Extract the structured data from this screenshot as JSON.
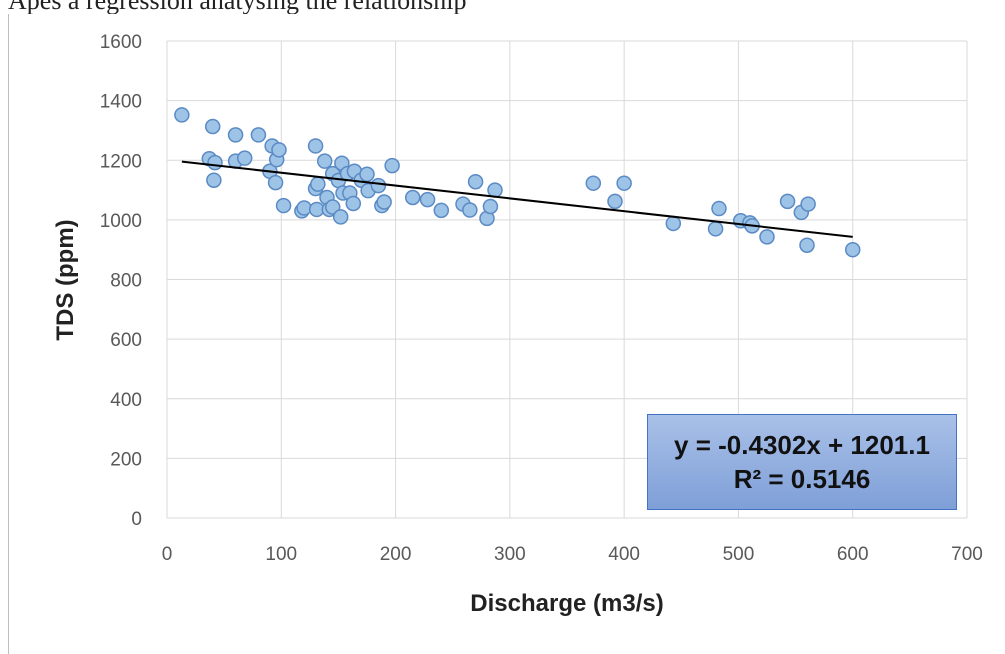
{
  "caption_fragment": "Apes a regression anatysing the relationsnip",
  "colors": {
    "point_fill": "#9dc3e6",
    "point_stroke": "#5b8ac4",
    "trendline": "#000000",
    "grid": "#d9d9d9",
    "box_fill": "#8faadc"
  },
  "chart_data": {
    "type": "scatter",
    "title": "",
    "xlabel": "Discharge (m3/s)",
    "ylabel": "TDS (ppm)",
    "xlim": [
      0,
      700
    ],
    "ylim": [
      0,
      1600
    ],
    "xticks": [
      0,
      100,
      200,
      300,
      400,
      500,
      600,
      700
    ],
    "yticks": [
      0,
      200,
      400,
      600,
      800,
      1000,
      1200,
      1400,
      1600
    ],
    "grid": true,
    "points": [
      [
        13,
        1352
      ],
      [
        37,
        1205
      ],
      [
        40,
        1313
      ],
      [
        41,
        1133
      ],
      [
        42,
        1192
      ],
      [
        60,
        1285
      ],
      [
        60,
        1197
      ],
      [
        68,
        1207
      ],
      [
        80,
        1285
      ],
      [
        90,
        1163
      ],
      [
        92,
        1248
      ],
      [
        95,
        1125
      ],
      [
        96,
        1202
      ],
      [
        98,
        1235
      ],
      [
        102,
        1048
      ],
      [
        118,
        1030
      ],
      [
        120,
        1040
      ],
      [
        130,
        1248
      ],
      [
        130,
        1105
      ],
      [
        131,
        1035
      ],
      [
        132,
        1120
      ],
      [
        138,
        1197
      ],
      [
        140,
        1075
      ],
      [
        142,
        1035
      ],
      [
        145,
        1155
      ],
      [
        145,
        1043
      ],
      [
        150,
        1132
      ],
      [
        152,
        1010
      ],
      [
        153,
        1190
      ],
      [
        154,
        1090
      ],
      [
        158,
        1155
      ],
      [
        160,
        1090
      ],
      [
        163,
        1055
      ],
      [
        164,
        1163
      ],
      [
        170,
        1133
      ],
      [
        175,
        1153
      ],
      [
        176,
        1098
      ],
      [
        185,
        1115
      ],
      [
        188,
        1048
      ],
      [
        190,
        1060
      ],
      [
        197,
        1182
      ],
      [
        215,
        1075
      ],
      [
        228,
        1068
      ],
      [
        240,
        1032
      ],
      [
        259,
        1053
      ],
      [
        265,
        1033
      ],
      [
        270,
        1128
      ],
      [
        280,
        1005
      ],
      [
        283,
        1045
      ],
      [
        287,
        1100
      ],
      [
        373,
        1123
      ],
      [
        392,
        1062
      ],
      [
        400,
        1123
      ],
      [
        443,
        988
      ],
      [
        480,
        970
      ],
      [
        483,
        1038
      ],
      [
        502,
        997
      ],
      [
        510,
        990
      ],
      [
        512,
        980
      ],
      [
        525,
        943
      ],
      [
        543,
        1062
      ],
      [
        555,
        1025
      ],
      [
        560,
        915
      ],
      [
        561,
        1053
      ],
      [
        600,
        900
      ]
    ],
    "trendline": {
      "slope": -0.4302,
      "intercept": 1201.1,
      "x_range": [
        13,
        600
      ]
    },
    "annotation": {
      "equation": "y = -0.4302x + 1201.1",
      "r_squared": "R² = 0.5146"
    }
  }
}
